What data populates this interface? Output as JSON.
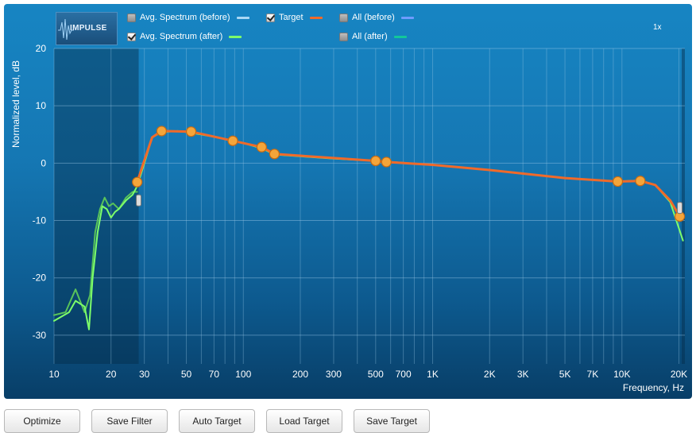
{
  "logo_text": "IMPULSE",
  "zoom_label": "1x",
  "legend": [
    {
      "label": "Avg. Spectrum (before)",
      "checked": false,
      "color": "#a9d8f5"
    },
    {
      "label": "Target",
      "checked": true,
      "color": "#f06a2a"
    },
    {
      "label": "All (before)",
      "checked": false,
      "color": "#6f9cff"
    },
    {
      "label": "Avg. Spectrum (after)",
      "checked": true,
      "color": "#7dff6a"
    },
    {
      "label": "All (after)",
      "checked": false,
      "color": "#12c79a"
    }
  ],
  "buttons": [
    "Optimize",
    "Save Filter",
    "Auto Target",
    "Load Target",
    "Save Target"
  ],
  "chart_data": {
    "type": "line",
    "xlabel": "Frequency, Hz",
    "ylabel": "Normalized level, dB",
    "x_scale": "log",
    "xlim": [
      10,
      21500
    ],
    "ylim": [
      -35,
      20
    ],
    "x_ticks": [
      10,
      20,
      30,
      50,
      70,
      100,
      200,
      300,
      500,
      700,
      1000,
      2000,
      3000,
      5000,
      7000,
      10000,
      20000
    ],
    "x_tick_labels": [
      "10",
      "20",
      "30",
      "50",
      "70",
      "100",
      "200",
      "300",
      "500",
      "700",
      "1K",
      "2K",
      "3K",
      "5K",
      "7K",
      "10K",
      "20K"
    ],
    "y_ticks": [
      20,
      10,
      0,
      -10,
      -20,
      -30
    ],
    "y_tick_labels": [
      "20",
      "10",
      "0",
      "-10",
      "-20",
      "-30"
    ],
    "grid": true,
    "shaded_region": [
      10,
      28
    ],
    "series": [
      {
        "name": "Target",
        "color": "#f06a2a",
        "points": [
          [
            27.5,
            -3.3
          ],
          [
            37,
            5.6
          ],
          [
            53,
            5.5
          ],
          [
            88,
            3.9
          ],
          [
            125,
            2.8
          ],
          [
            146,
            1.6
          ],
          [
            500,
            0.4
          ],
          [
            570,
            0.2
          ],
          [
            9500,
            -3.2
          ],
          [
            12500,
            -3.1
          ],
          [
            20200,
            -9.3
          ]
        ],
        "line": [
          [
            27.5,
            -3.3
          ],
          [
            30,
            0.5
          ],
          [
            33,
            4.5
          ],
          [
            37,
            5.6
          ],
          [
            53,
            5.5
          ],
          [
            88,
            3.9
          ],
          [
            125,
            2.8
          ],
          [
            146,
            1.6
          ],
          [
            300,
            0.9
          ],
          [
            500,
            0.4
          ],
          [
            570,
            0.2
          ],
          [
            1000,
            -0.3
          ],
          [
            2000,
            -1.2
          ],
          [
            5000,
            -2.6
          ],
          [
            9500,
            -3.2
          ],
          [
            12500,
            -3.1
          ],
          [
            15000,
            -3.8
          ],
          [
            18000,
            -6.5
          ],
          [
            20200,
            -9.3
          ]
        ]
      },
      {
        "name": "Avg. Spectrum (after)",
        "color": "#7dff6a",
        "line": [
          [
            10,
            -27.5
          ],
          [
            12,
            -26
          ],
          [
            13,
            -24
          ],
          [
            14.5,
            -25
          ],
          [
            15.3,
            -29
          ],
          [
            16,
            -20
          ],
          [
            17,
            -12
          ],
          [
            18,
            -7.5
          ],
          [
            19,
            -8
          ],
          [
            20,
            -9.5
          ],
          [
            21,
            -8.5
          ],
          [
            22,
            -8
          ],
          [
            24,
            -6.5
          ],
          [
            26,
            -5.5
          ],
          [
            27.5,
            -4
          ],
          [
            30,
            0
          ],
          [
            33,
            4.5
          ],
          [
            37,
            5.4
          ],
          [
            45,
            5.6
          ],
          [
            53,
            5.3
          ],
          [
            70,
            4.6
          ],
          [
            88,
            3.9
          ],
          [
            100,
            3.5
          ],
          [
            125,
            2.6
          ],
          [
            146,
            1.5
          ],
          [
            300,
            0.8
          ],
          [
            500,
            0.4
          ],
          [
            1000,
            -0.3
          ],
          [
            2000,
            -1.2
          ],
          [
            5000,
            -2.6
          ],
          [
            9500,
            -3.2
          ],
          [
            12500,
            -3.0
          ],
          [
            15000,
            -3.8
          ],
          [
            18000,
            -6.8
          ],
          [
            21000,
            -13.5
          ]
        ]
      },
      {
        "name": "All (after)",
        "color": "#58c25a",
        "line": [
          [
            10,
            -26.5
          ],
          [
            11.5,
            -26
          ],
          [
            13,
            -22
          ],
          [
            14.5,
            -26
          ],
          [
            15.5,
            -23
          ],
          [
            16.5,
            -12
          ],
          [
            17.5,
            -8
          ],
          [
            18.5,
            -6
          ],
          [
            19.5,
            -7.5
          ],
          [
            20.5,
            -7
          ],
          [
            22,
            -8
          ],
          [
            24,
            -6
          ],
          [
            26,
            -5
          ],
          [
            27.5,
            -5
          ]
        ]
      }
    ]
  }
}
